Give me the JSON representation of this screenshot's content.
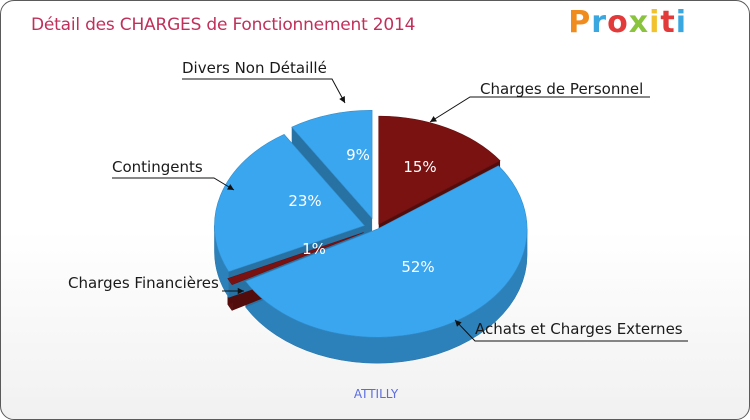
{
  "title": "Détail des CHARGES de Fonctionnement 2014",
  "logo": {
    "letters": [
      "P",
      "r",
      "o",
      "x",
      "i",
      "t",
      "i"
    ],
    "colors": [
      "#f08c1e",
      "#3aa7e0",
      "#e23a3a",
      "#8ac43f",
      "#f2c12e",
      "#e23a3a",
      "#3aa7e0"
    ]
  },
  "commune": "ATTILLY",
  "chart_data": {
    "type": "pie",
    "title": "Détail des CHARGES de Fonctionnement 2014",
    "subtitle": "ATTILLY",
    "slices": [
      {
        "name": "Charges de Personnel",
        "value": 15,
        "label": "15%",
        "color": "#7a1212"
      },
      {
        "name": "Achats et Charges Externes",
        "value": 52,
        "label": "52%",
        "color": "#3aa6ef"
      },
      {
        "name": "Charges Financières",
        "value": 1,
        "label": "1%",
        "color": "#7a1212"
      },
      {
        "name": "Contingents",
        "value": 23,
        "label": "23%",
        "color": "#3aa6ef"
      },
      {
        "name": "Divers Non Détaillé",
        "value": 9,
        "label": "9%",
        "color": "#3aa6ef"
      }
    ]
  }
}
